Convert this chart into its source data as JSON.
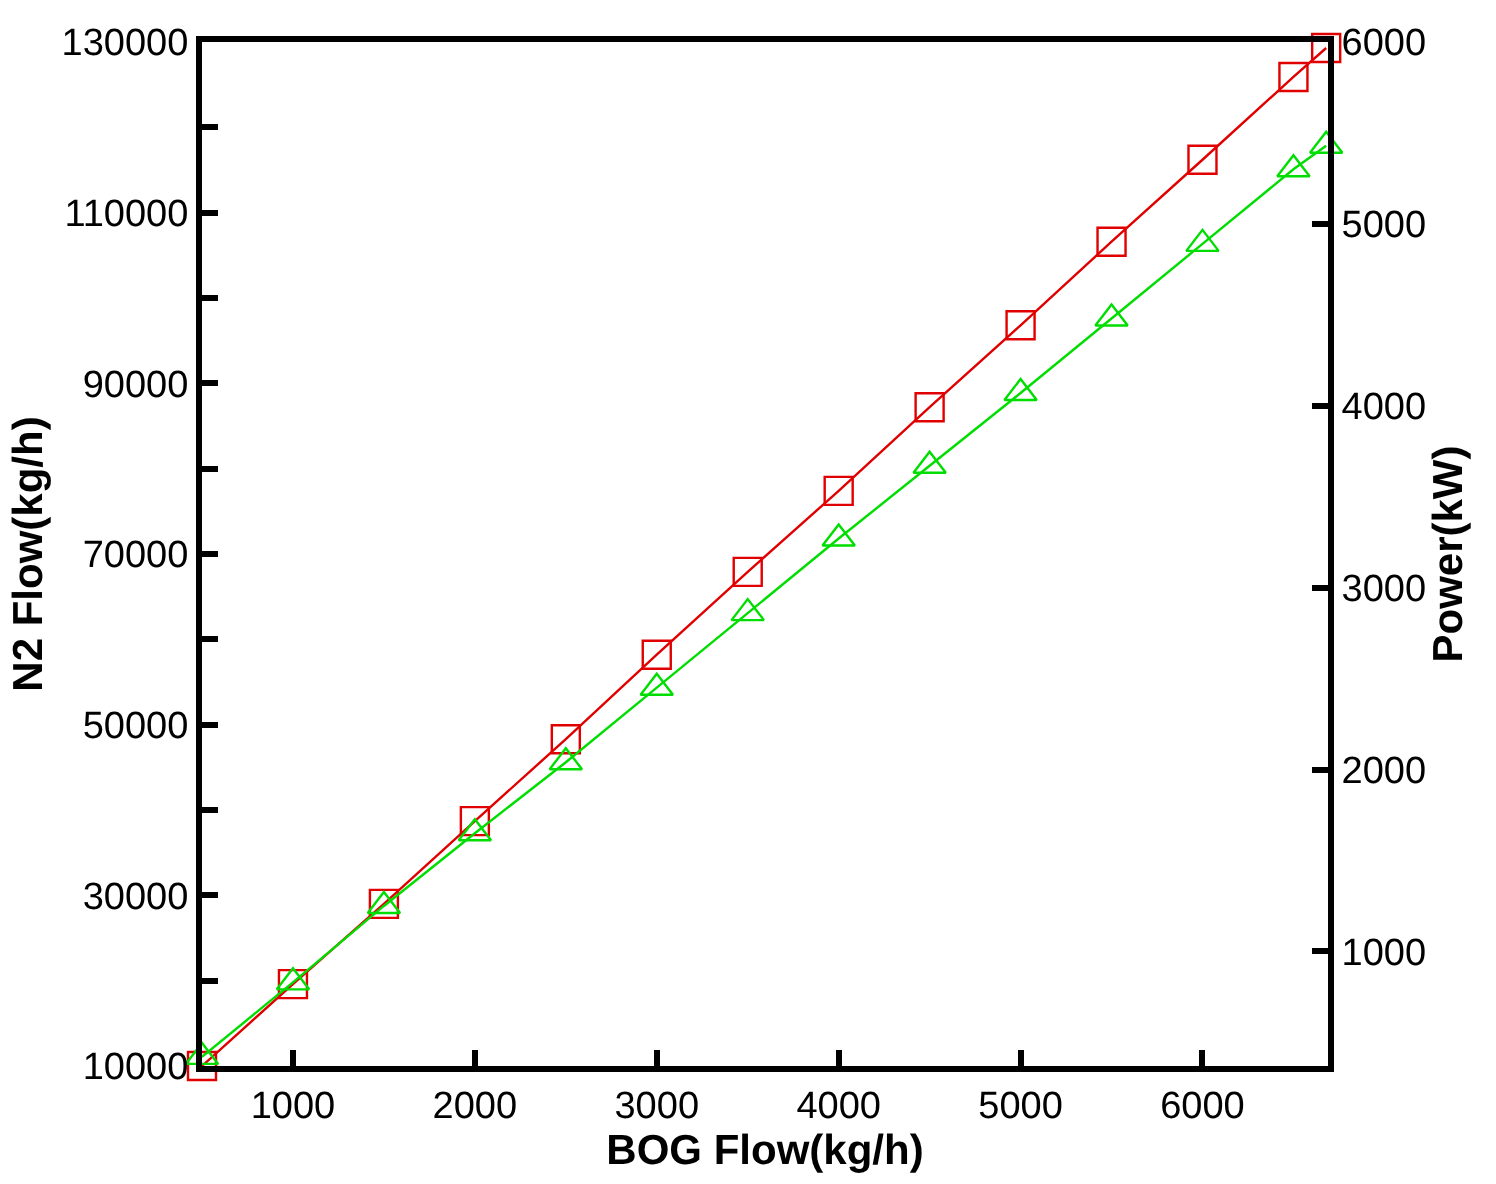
{
  "chart_data": {
    "type": "line",
    "xlabel": "BOG Flow(kg/h)",
    "ylabel": "N2 Flow(kg/h)",
    "y2label": "Power(kW)",
    "x": [
      500,
      1000,
      1500,
      2000,
      2500,
      3000,
      3500,
      4000,
      4500,
      5000,
      5500,
      6000,
      6500,
      6680
    ],
    "series": [
      {
        "color": "#e00000",
        "marker": "square",
        "values": [
          10000,
          19600,
          29000,
          38700,
          48300,
          58200,
          67900,
          77400,
          87200,
          96800,
          106600,
          116200,
          125900,
          129300
        ]
      },
      {
        "color": "#00dd00",
        "marker": "triangle",
        "axis": "y2",
        "values": [
          420,
          830,
          1250,
          1650,
          2040,
          2450,
          2860,
          3270,
          3670,
          4070,
          4480,
          4890,
          5300,
          5430
        ]
      }
    ],
    "xlim": [
      500,
      6690
    ],
    "xticks": [
      1000,
      2000,
      3000,
      4000,
      5000,
      6000
    ],
    "ylim": [
      10000,
      130000
    ],
    "yticks": [
      10000,
      {
        "value": 20000,
        "label": null
      },
      30000,
      {
        "value": 40000,
        "label": null
      },
      50000,
      {
        "value": 60000,
        "label": null
      },
      70000,
      {
        "value": 80000,
        "label": null
      },
      90000,
      {
        "value": 100000,
        "label": null
      },
      110000,
      {
        "value": 120000,
        "label": null
      },
      130000
    ],
    "y2lim": [
      370,
      6000
    ],
    "y2ticks": [
      1000,
      2000,
      3000,
      4000,
      5000,
      6000
    ]
  }
}
